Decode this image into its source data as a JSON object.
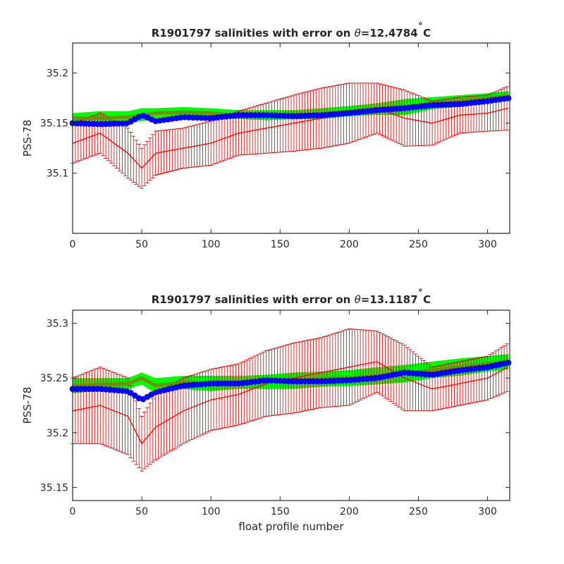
{
  "chart_data": [
    {
      "type": "line",
      "title_prefix": "R1901797 salinities with error on ",
      "title_theta": "θ",
      "title_suffix": "=12.4784",
      "title_deg": "˚",
      "title_unit": "C",
      "xlabel": "",
      "ylabel": "PSS-78",
      "xlim": [
        0,
        316
      ],
      "ylim": [
        35.04,
        35.23
      ],
      "xticks": [
        0,
        50,
        100,
        150,
        200,
        250,
        300
      ],
      "yticks": [
        35.1,
        35.15,
        35.2
      ],
      "ytick_labels": [
        "35.1",
        "35.15",
        "35.2"
      ],
      "grid": false,
      "series_profile_numbers": [
        0,
        20,
        40,
        50,
        60,
        80,
        100,
        120,
        140,
        160,
        180,
        200,
        220,
        240,
        260,
        280,
        300,
        315
      ],
      "series": [
        {
          "role": "mapped climatology salinity (olive band, green envelope)",
          "color": "#808000",
          "band_color": "#00ff00",
          "values": [
            35.155,
            35.155,
            35.156,
            35.158,
            35.16,
            35.161,
            35.16,
            35.158,
            35.158,
            35.158,
            35.159,
            35.162,
            35.164,
            35.166,
            35.17,
            35.172,
            35.175,
            35.177
          ],
          "upper": [
            35.16,
            35.162,
            35.162,
            35.165,
            35.165,
            35.166,
            35.165,
            35.163,
            35.163,
            35.163,
            35.165,
            35.167,
            35.17,
            35.174,
            35.176,
            35.178,
            35.18,
            35.182
          ],
          "lower": [
            35.15,
            35.149,
            35.15,
            35.152,
            35.155,
            35.156,
            35.155,
            35.154,
            35.153,
            35.154,
            35.154,
            35.157,
            35.158,
            35.158,
            35.164,
            35.166,
            35.17,
            35.172
          ]
        },
        {
          "role": "uncalibrated float salinity with error bars",
          "color": "#ff0000",
          "errorbar_color": "#cc0000",
          "values": [
            35.13,
            35.14,
            35.12,
            35.105,
            35.12,
            35.125,
            35.13,
            35.14,
            35.145,
            35.15,
            35.155,
            35.16,
            35.165,
            35.155,
            35.15,
            35.158,
            35.16,
            35.165
          ],
          "error": [
            0.02,
            0.02,
            0.025,
            0.02,
            0.022,
            0.02,
            0.022,
            0.022,
            0.025,
            0.028,
            0.03,
            0.03,
            0.025,
            0.028,
            0.022,
            0.018,
            0.018,
            0.022
          ]
        },
        {
          "role": "calibrated float salinity",
          "color": "#0000ff",
          "values": [
            35.15,
            35.149,
            35.15,
            35.158,
            35.152,
            35.156,
            35.155,
            35.158,
            35.158,
            35.157,
            35.158,
            35.16,
            35.163,
            35.165,
            35.168,
            35.169,
            35.172,
            35.175
          ]
        }
      ]
    },
    {
      "type": "line",
      "title_prefix": "R1901797 salinities with error on ",
      "title_theta": "θ",
      "title_suffix": "=13.1187",
      "title_deg": "˚",
      "title_unit": "C",
      "xlabel": "float profile number",
      "ylabel": "PSS-78",
      "xlim": [
        0,
        316
      ],
      "ylim": [
        35.138,
        35.312
      ],
      "xticks": [
        0,
        50,
        100,
        150,
        200,
        250,
        300
      ],
      "yticks": [
        35.15,
        35.2,
        35.25,
        35.3
      ],
      "ytick_labels": [
        "35.15",
        "35.2",
        "35.25",
        "35.3"
      ],
      "grid": false,
      "series_profile_numbers": [
        0,
        20,
        40,
        50,
        60,
        80,
        100,
        120,
        140,
        160,
        180,
        200,
        220,
        240,
        260,
        280,
        300,
        315
      ],
      "series": [
        {
          "role": "mapped climatology salinity (olive band, green envelope)",
          "color": "#808000",
          "band_color": "#00ff00",
          "values": [
            35.243,
            35.244,
            35.245,
            35.25,
            35.243,
            35.246,
            35.245,
            35.246,
            35.247,
            35.248,
            35.249,
            35.25,
            35.252,
            35.254,
            35.257,
            35.26,
            35.263,
            35.265
          ],
          "upper": [
            35.25,
            35.25,
            35.25,
            35.255,
            35.25,
            35.252,
            35.252,
            35.252,
            35.253,
            35.255,
            35.256,
            35.257,
            35.26,
            35.262,
            35.265,
            35.268,
            35.27,
            35.272
          ],
          "lower": [
            35.236,
            35.238,
            35.24,
            35.244,
            35.236,
            35.24,
            35.238,
            35.24,
            35.24,
            35.24,
            35.242,
            35.243,
            35.244,
            35.246,
            35.25,
            35.252,
            35.256,
            35.258
          ]
        },
        {
          "role": "uncalibrated float salinity with error bars",
          "color": "#ff0000",
          "errorbar_color": "#cc0000",
          "values": [
            35.22,
            35.225,
            35.215,
            35.19,
            35.205,
            35.22,
            35.23,
            35.235,
            35.245,
            35.25,
            35.255,
            35.26,
            35.265,
            35.25,
            35.24,
            35.245,
            35.25,
            35.26
          ],
          "error": [
            0.03,
            0.035,
            0.035,
            0.025,
            0.03,
            0.03,
            0.028,
            0.028,
            0.03,
            0.032,
            0.032,
            0.035,
            0.028,
            0.03,
            0.02,
            0.02,
            0.02,
            0.022
          ]
        },
        {
          "role": "calibrated float salinity",
          "color": "#0000ff",
          "values": [
            35.24,
            35.24,
            35.238,
            35.23,
            35.237,
            35.243,
            35.245,
            35.245,
            35.248,
            35.247,
            35.247,
            35.248,
            35.25,
            35.255,
            35.253,
            35.257,
            35.26,
            35.264
          ]
        }
      ]
    }
  ]
}
